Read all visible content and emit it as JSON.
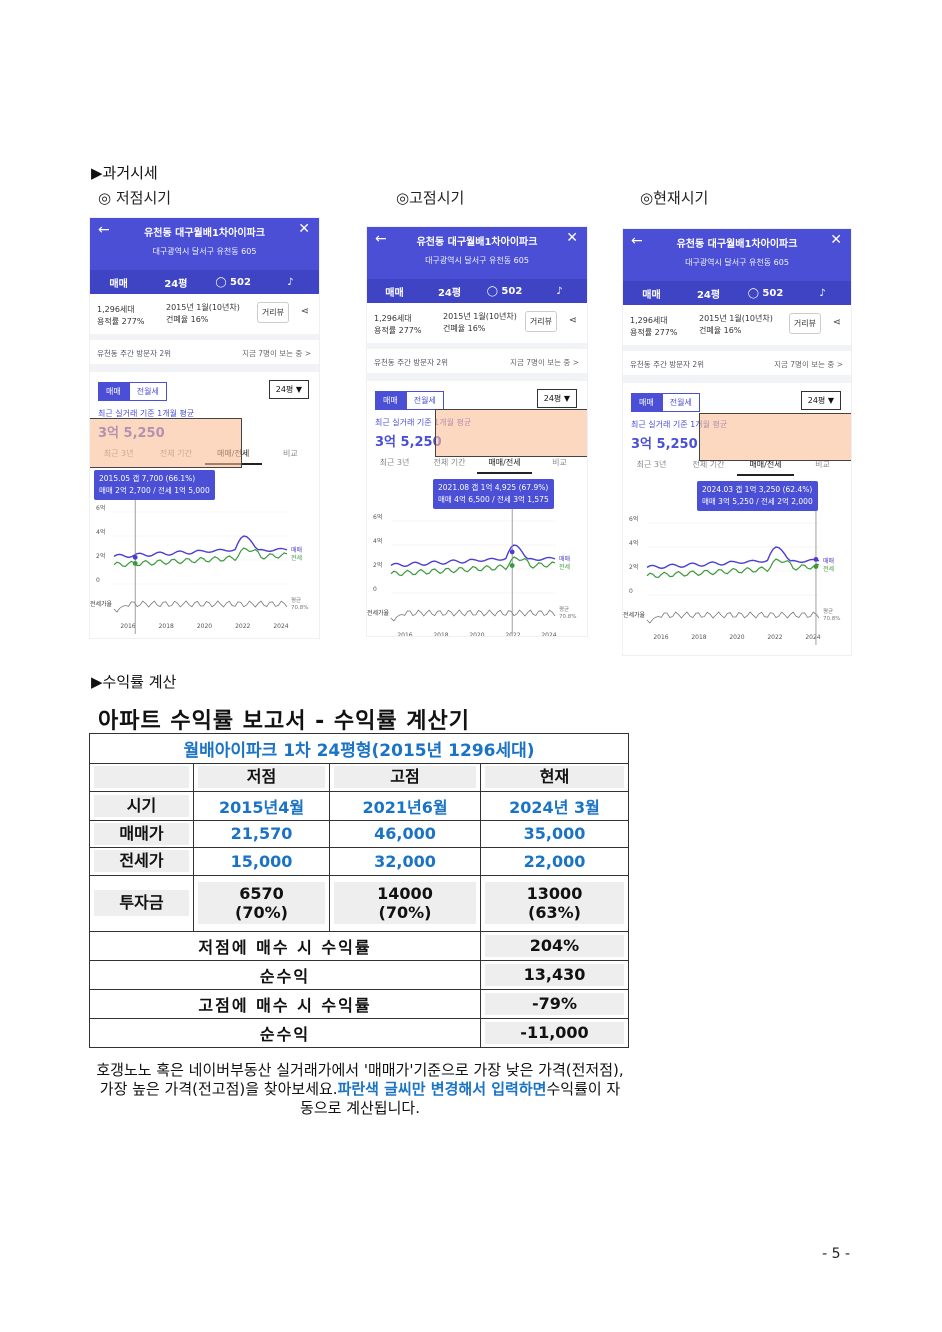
{
  "sections": {
    "past_price": "▶과거시세",
    "yield_calc": "▶수익률 계산"
  },
  "periods": [
    "◎ 저점시기",
    "◎고점시기",
    "◎현재시기"
  ],
  "phone_common": {
    "back_icon": "←",
    "close_icon": "✕",
    "title": "유천동 대구월배1차아이파크",
    "address": "대구광역시 달서구 유천동 605",
    "tabs": [
      "매매",
      "24평",
      "502"
    ],
    "households": "1,296세대",
    "floor_area": "용적률 277%",
    "built": "2015년 1월(10년차)",
    "building_coverage": "건폐율 16%",
    "street_view": "거리뷰",
    "share_icon": "share-icon",
    "visitors": "유천동 주간 방문자 2위",
    "viewing_now": "지금 7명이 보는 중 >",
    "seg_sale": "매매",
    "seg_jeonse": "전월세",
    "pyeong": "24평 ▼",
    "avg_label": "최근 실거래 기준 1개월 평균",
    "price": "3억 5,250",
    "range_tabs": [
      "최근 3년",
      "전체 기간",
      "매매/전세",
      "비교"
    ],
    "y_ticks": [
      "6억",
      "4억",
      "2억",
      "0"
    ],
    "x_ticks": [
      "2016",
      "2018",
      "2020",
      "2022",
      "2024"
    ],
    "legend_sale": "매매",
    "legend_jeonse": "전세",
    "gap_label": "전세가율",
    "gap_avg": "평균",
    "gap_avg_value": "70.8%"
  },
  "phones": [
    {
      "tip_line1": "2015.05  갭 7,700 (66.1%)",
      "tip_line2": "매매 2억 2,700 / 전세 1억 5,000"
    },
    {
      "tip_line1": "2021.08  갭 1억 4,925 (67.9%)",
      "tip_line2": "매매 4억 6,500 / 전세 3억 1,575"
    },
    {
      "tip_line1": "2024.03  갭 1억 3,250 (62.4%)",
      "tip_line2": "매매 3억 5,250 / 전세 2억 2,000"
    }
  ],
  "report": {
    "title": "아파트 수익률 보고서 - 수익률 계산기",
    "subtitle": "월배아이파크 1차 24평형(2015년 1296세대)",
    "headers": [
      "저점",
      "고점",
      "현재"
    ],
    "row_labels": [
      "시기",
      "매매가",
      "전세가",
      "투자금"
    ],
    "period": [
      "2015년4월",
      "2021년6월",
      "2024년 3월"
    ],
    "sale": [
      "21,570",
      "46,000",
      "35,000"
    ],
    "jeonse": [
      "15,000",
      "32,000",
      "22,000"
    ],
    "invest": [
      "6570",
      "14000",
      "13000"
    ],
    "invest_pct": [
      "(70%)",
      "(70%)",
      "(63%)"
    ],
    "low_yield_label": "저점에 매수 시 수익률",
    "low_yield": "204%",
    "net_label": "순수익",
    "low_net": "13,430",
    "high_yield_label": "고점에 매수 시 수익률",
    "high_yield": "-79%",
    "high_net": "-11,000"
  },
  "note": {
    "text": "호갱노노 혹은 네이버부동산 실거래가에서 '매매가'기준으로 가장 낮은 가격(전저점), 가장 높은 가격(전고점)을 찾아보세요.",
    "highlight": "파란색 글씨만 변경해서 입력하면",
    "tail": "수익률이 자동으로 계산됩니다."
  },
  "page_number": "- 5 -",
  "colors": {
    "brand": "#4a4fd6",
    "input_blue": "#1a73c5",
    "jeonse_green": "#3a9a3a",
    "overlay": "#fabe96"
  }
}
